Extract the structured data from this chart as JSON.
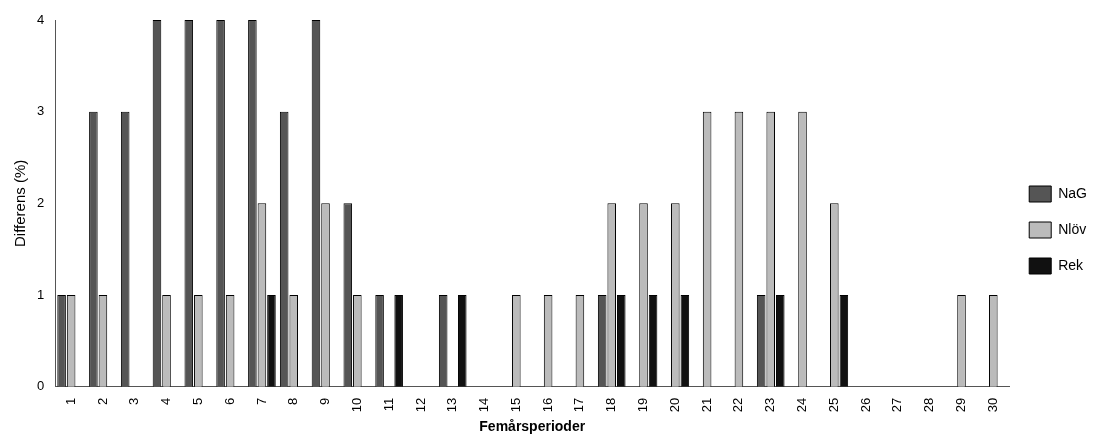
{
  "chart_data": {
    "type": "bar",
    "xlabel": "Femårsperioder",
    "ylabel": "Differens (%)",
    "categories": [
      "1",
      "2",
      "3",
      "4",
      "5",
      "6",
      "7",
      "8",
      "9",
      "10",
      "11",
      "12",
      "13",
      "14",
      "15",
      "16",
      "17",
      "18",
      "19",
      "20",
      "21",
      "22",
      "23",
      "24",
      "25",
      "26",
      "27",
      "28",
      "29",
      "30"
    ],
    "series": [
      {
        "name": "NaG",
        "color": "#555555",
        "values": [
          1,
          3,
          3,
          4,
          4,
          4,
          4,
          3,
          4,
          2,
          1,
          0,
          1,
          0,
          0,
          0,
          0,
          1,
          0,
          0,
          0,
          0,
          1,
          0,
          0,
          0,
          0,
          0,
          0,
          0
        ]
      },
      {
        "name": "Nlöv",
        "color": "#bbbbbb",
        "values": [
          1,
          1,
          0,
          1,
          1,
          1,
          2,
          1,
          2,
          1,
          0,
          0,
          0,
          0,
          1,
          1,
          1,
          2,
          2,
          2,
          3,
          3,
          3,
          3,
          2,
          0,
          0,
          0,
          1,
          1
        ]
      },
      {
        "name": "Rek",
        "color": "#111111",
        "values": [
          0,
          0,
          0,
          0,
          0,
          0,
          1,
          0,
          0,
          0,
          1,
          0,
          1,
          0,
          0,
          0,
          0,
          1,
          1,
          1,
          0,
          0,
          1,
          0,
          1,
          0,
          0,
          0,
          0,
          0
        ]
      }
    ],
    "ylim": [
      0,
      4
    ],
    "yticks": [
      0,
      1,
      2,
      3,
      4
    ],
    "grid": false,
    "legend": "right"
  }
}
